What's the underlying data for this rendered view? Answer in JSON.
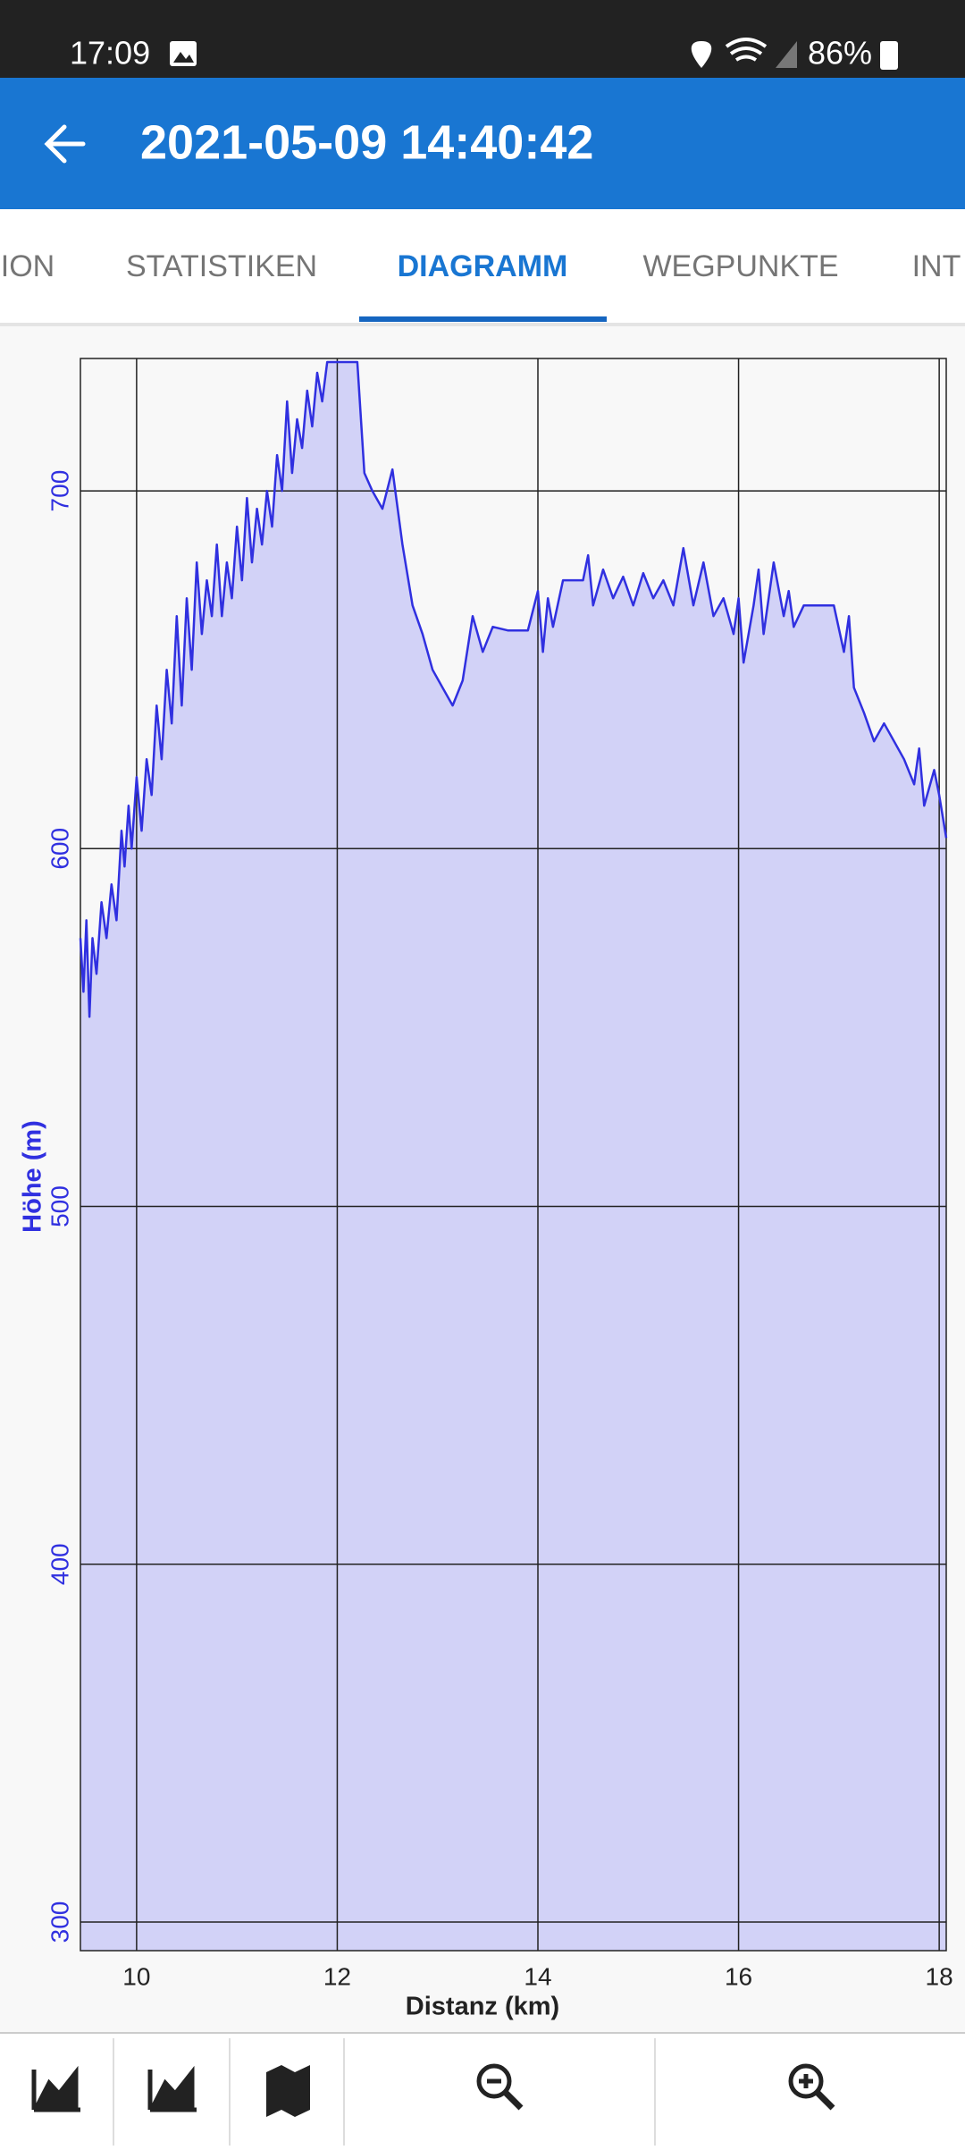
{
  "status_bar": {
    "time": "17:09",
    "battery": "86%"
  },
  "app_bar": {
    "title": "2021-05-09 14:40:42"
  },
  "tabs": [
    "ION",
    "STATISTIKEN",
    "DIAGRAMM",
    "WEGPUNKTE",
    "INT"
  ],
  "chart_data": {
    "type": "area",
    "x_label": "Distanz (km)",
    "y_label": "Höhe (m)",
    "color": "#3030e0",
    "fill": "#d2d2f7",
    "xlim": [
      9.44,
      18.07
    ],
    "ylim": [
      292,
      737
    ],
    "xticks": [
      10,
      12,
      14,
      16,
      18
    ],
    "yticks": [
      300,
      400,
      500,
      600,
      700
    ],
    "grid": true,
    "x": [
      9.44,
      9.47,
      9.5,
      9.53,
      9.56,
      9.6,
      9.65,
      9.7,
      9.75,
      9.8,
      9.85,
      9.88,
      9.92,
      9.95,
      10.0,
      10.05,
      10.1,
      10.15,
      10.2,
      10.25,
      10.3,
      10.35,
      10.4,
      10.45,
      10.5,
      10.55,
      10.6,
      10.65,
      10.7,
      10.75,
      10.8,
      10.85,
      10.9,
      10.95,
      11.0,
      11.05,
      11.1,
      11.15,
      11.2,
      11.25,
      11.3,
      11.35,
      11.4,
      11.45,
      11.5,
      11.55,
      11.6,
      11.65,
      11.7,
      11.75,
      11.8,
      11.85,
      11.9,
      12.0,
      12.2,
      12.27,
      12.35,
      12.45,
      12.55,
      12.65,
      12.75,
      12.85,
      12.95,
      13.05,
      13.15,
      13.25,
      13.35,
      13.45,
      13.55,
      13.7,
      13.9,
      14.0,
      14.05,
      14.1,
      14.15,
      14.25,
      14.45,
      14.5,
      14.55,
      14.65,
      14.75,
      14.85,
      14.95,
      15.05,
      15.15,
      15.25,
      15.35,
      15.45,
      15.55,
      15.65,
      15.75,
      15.85,
      15.95,
      16.0,
      16.05,
      16.15,
      16.2,
      16.25,
      16.35,
      16.45,
      16.5,
      16.55,
      16.65,
      16.95,
      17.05,
      17.1,
      17.15,
      17.25,
      17.35,
      17.45,
      17.55,
      17.65,
      17.75,
      17.8,
      17.85,
      17.95,
      18.0,
      18.07
    ],
    "values": [
      575,
      560,
      580,
      553,
      575,
      565,
      585,
      575,
      590,
      580,
      605,
      595,
      612,
      600,
      620,
      605,
      625,
      615,
      640,
      625,
      650,
      635,
      665,
      640,
      670,
      650,
      680,
      660,
      675,
      665,
      685,
      665,
      680,
      670,
      690,
      675,
      698,
      680,
      695,
      685,
      700,
      690,
      710,
      700,
      725,
      705,
      720,
      712,
      728,
      718,
      733,
      725,
      736,
      736,
      736,
      705,
      700,
      695,
      706,
      685,
      668,
      660,
      650,
      645,
      640,
      647,
      665,
      655,
      662,
      661,
      661,
      672,
      655,
      670,
      662,
      675,
      675,
      682,
      668,
      678,
      670,
      676,
      668,
      677,
      670,
      675,
      668,
      684,
      668,
      680,
      665,
      670,
      660,
      670,
      652,
      668,
      678,
      660,
      680,
      665,
      672,
      662,
      668,
      668,
      655,
      665,
      645,
      638,
      630,
      635,
      630,
      625,
      618,
      628,
      612,
      622,
      615,
      603
    ]
  }
}
